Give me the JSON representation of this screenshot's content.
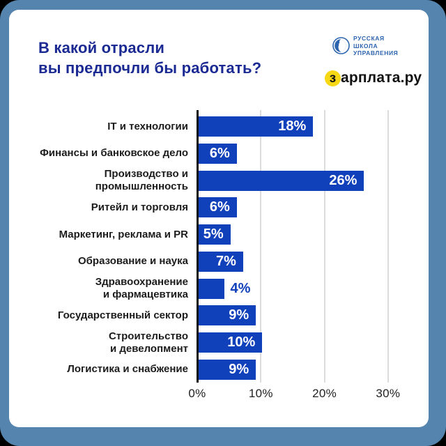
{
  "frame": {
    "background": "#5584ae",
    "card_background": "#ffffff"
  },
  "header": {
    "title_line1": "В какой отрасли",
    "title_line2": "вы предпочли бы работать?",
    "title_color": "#1b2a93"
  },
  "logos": {
    "rshu": {
      "line1": "РУССКАЯ",
      "line2": "ШКОЛА",
      "line3": "УПРАВЛЕНИЯ",
      "color": "#2d64ae",
      "icon": "rshu-face-in-circle"
    },
    "zarplata": {
      "first_letter": "з",
      "rest": "арплата.ру",
      "circle_color": "#f7d815",
      "text_color": "#111111"
    }
  },
  "chart_data": {
    "type": "bar",
    "orientation": "horizontal",
    "title": "В какой отрасли вы предпочли бы работать?",
    "categories": [
      "IT и технологии",
      "Финансы и банковское дело",
      "Производство и\nпромышленность",
      "Ритейл и торговля",
      "Маркетинг, реклама и PR",
      "Образование и наука",
      "Здравоохранение\nи фармацевтика",
      "Государственный сектор",
      "Строительство\nи девелопмент",
      "Логистика и снабжение"
    ],
    "values": [
      18,
      6,
      26,
      6,
      5,
      7,
      4,
      9,
      10,
      9
    ],
    "value_labels": [
      "18%",
      "6%",
      "26%",
      "6%",
      "5%",
      "7%",
      "4%",
      "9%",
      "10%",
      "9%"
    ],
    "value_suffix": "%",
    "x_ticks": [
      "0%",
      "10%",
      "20%",
      "30%"
    ],
    "x_tick_values": [
      0,
      10,
      20,
      30
    ],
    "xlim": [
      0,
      30
    ],
    "grid": true,
    "bar_color": "#1140bb",
    "value_label_inside_color": "#ffffff",
    "value_label_outside_color": "#1140bb",
    "gridline_color": "#dcdcdc",
    "axis_line_color": "#111111"
  }
}
